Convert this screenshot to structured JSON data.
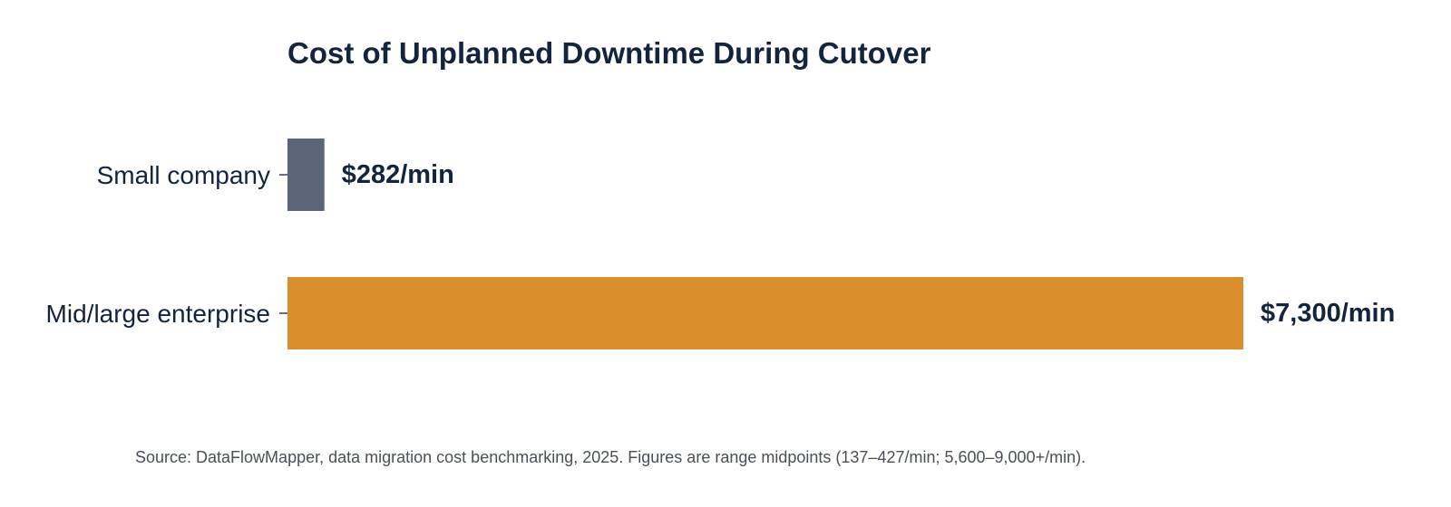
{
  "chart_data": {
    "type": "bar",
    "orientation": "horizontal",
    "title": "Cost of Unplanned Downtime During Cutover",
    "categories": [
      "Small company",
      "Mid/large enterprise"
    ],
    "values": [
      282,
      7300
    ],
    "value_labels": [
      "$282/min",
      "$7,300/min"
    ],
    "colors": [
      "#5a6578",
      "#d98f2c"
    ],
    "unit": "$/min",
    "xlim": [
      0,
      7300
    ],
    "grid": false,
    "legend": "none",
    "xlabel": "",
    "ylabel": ""
  },
  "footer": {
    "source": "Source: DataFlowMapper, data migration cost benchmarking, 2025. Figures are range midpoints (137–427/min; 5,600–9,000+/min)."
  }
}
